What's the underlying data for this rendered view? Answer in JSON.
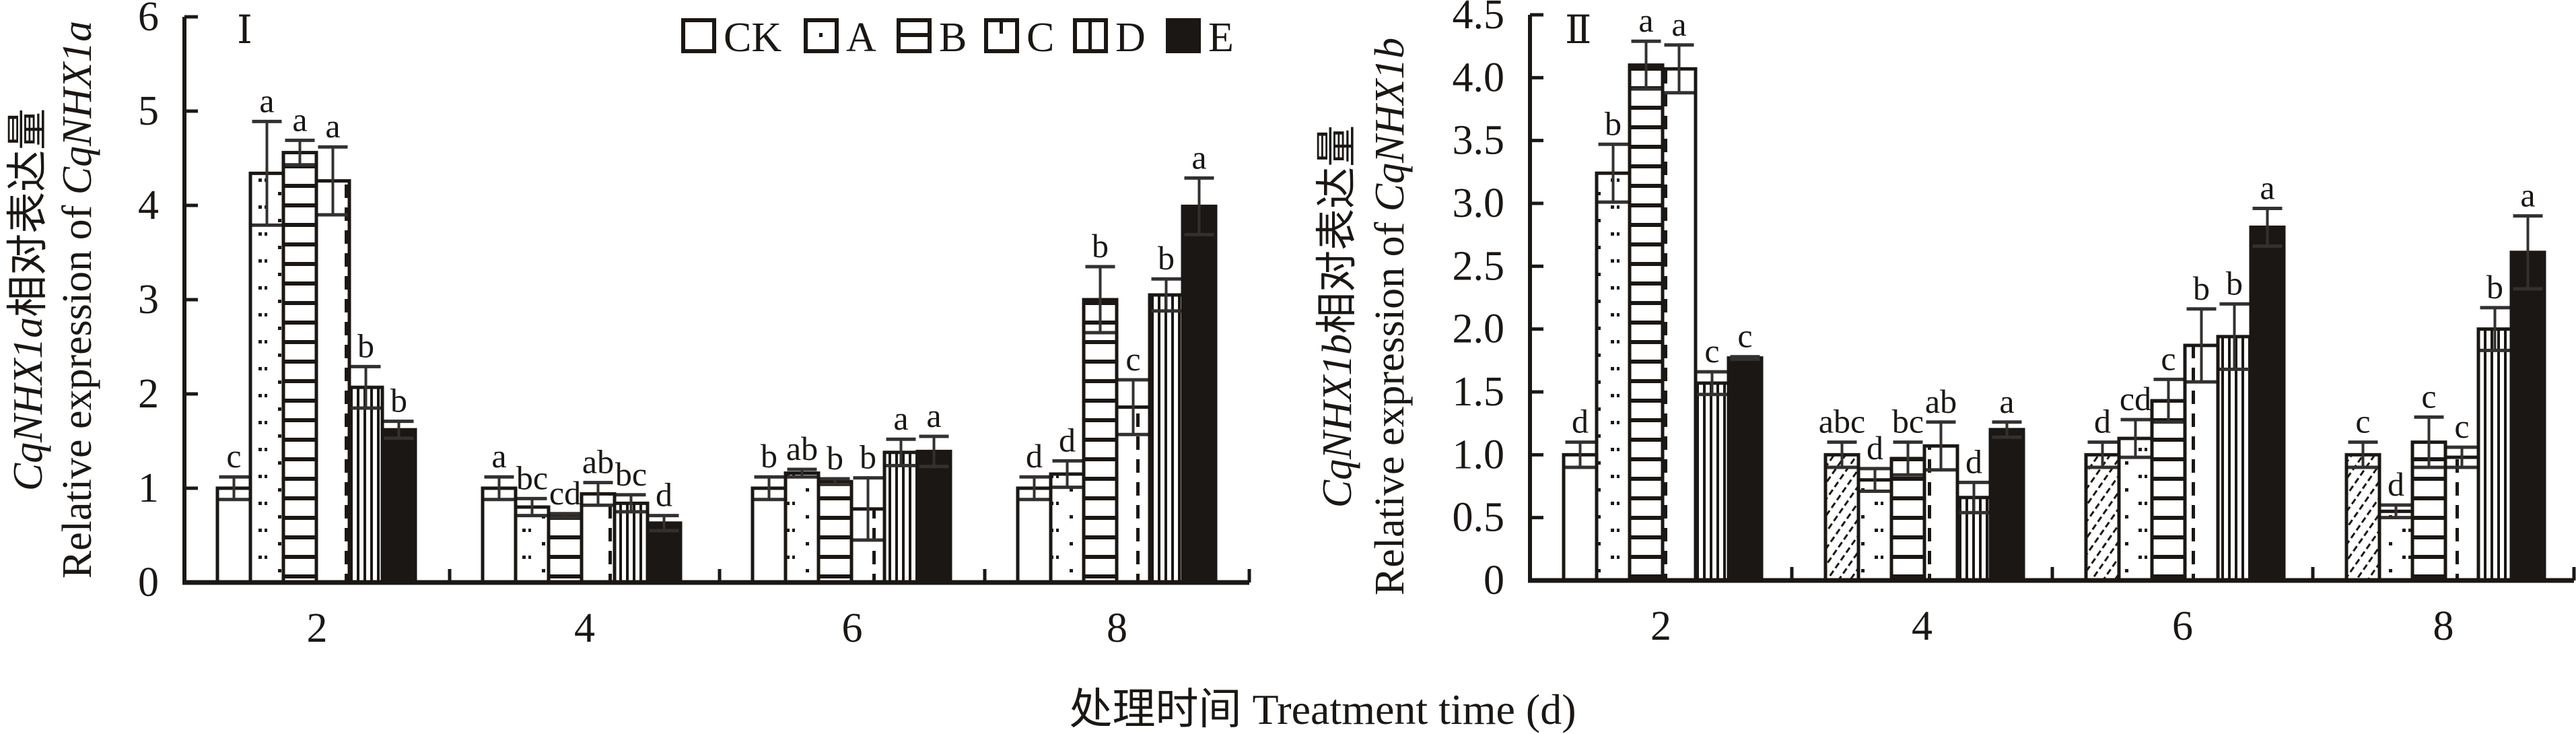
{
  "x_axis_title": "处理时间 Treatment time (d)",
  "legend": [
    {
      "key": "CK",
      "pattern": "none"
    },
    {
      "key": "A",
      "pattern": "dots"
    },
    {
      "key": "B",
      "pattern": "hlines"
    },
    {
      "key": "C",
      "pattern": "dash"
    },
    {
      "key": "D",
      "pattern": "vlines"
    },
    {
      "key": "E",
      "pattern": "solid"
    }
  ],
  "colors": {
    "ink": "#1a1714",
    "error_bar": "#333130",
    "background": "#ffffff"
  },
  "chart_data": [
    {
      "type": "bar",
      "panel": "Ⅰ",
      "ylabel_line1": "CqNHX1a相对表达量",
      "ylabel_line2": "Relative expression of CqNHX1a",
      "xlabel": "处理时间 Treatment time (d)",
      "categories": [
        "2",
        "4",
        "6",
        "8"
      ],
      "ylim": [
        0,
        6
      ],
      "yticks": [
        "0",
        "1",
        "2",
        "3",
        "4",
        "5",
        "6"
      ],
      "ytick_values": [
        0,
        1,
        2,
        3,
        4,
        5,
        6
      ],
      "grid": false,
      "legend_position": "top-right",
      "series": [
        {
          "name": "CK",
          "values": [
            1.0,
            1.0,
            1.0,
            1.0
          ],
          "errors": [
            0.12,
            0.12,
            0.12,
            0.12
          ],
          "letters": [
            "c",
            "a",
            "b",
            "d"
          ]
        },
        {
          "name": "A",
          "values": [
            4.34,
            0.8,
            1.16,
            1.15
          ],
          "errors": [
            0.55,
            0.09,
            0.04,
            0.14
          ],
          "letters": [
            "a",
            "bc",
            "ab",
            "d"
          ]
        },
        {
          "name": "B",
          "values": [
            4.56,
            0.71,
            1.07,
            3.0
          ],
          "errors": [
            0.13,
            0.02,
            0.03,
            0.35
          ],
          "letters": [
            "a",
            "cd",
            "b",
            "b"
          ]
        },
        {
          "name": "C",
          "values": [
            4.26,
            0.94,
            0.78,
            1.86
          ],
          "errors": [
            0.36,
            0.12,
            0.33,
            0.29
          ],
          "letters": [
            "a",
            "ab",
            "b",
            "c"
          ]
        },
        {
          "name": "D",
          "values": [
            2.07,
            0.84,
            1.38,
            3.05
          ],
          "errors": [
            0.22,
            0.09,
            0.14,
            0.17
          ],
          "letters": [
            "b",
            "bc",
            "a",
            "b"
          ]
        },
        {
          "name": "E",
          "values": [
            1.62,
            0.63,
            1.39,
            3.99
          ],
          "errors": [
            0.09,
            0.08,
            0.16,
            0.3
          ],
          "letters": [
            "b",
            "d",
            "a",
            "a"
          ]
        }
      ]
    },
    {
      "type": "bar",
      "panel": "Ⅱ",
      "ylabel_line1": "CqNHX1b相对表达量",
      "ylabel_line2": "Relative expression of CqNHX1b",
      "xlabel": "处理时间 Treatment time (d)",
      "categories": [
        "2",
        "4",
        "6",
        "8"
      ],
      "ylim": [
        0,
        4.5
      ],
      "yticks": [
        "0",
        "0.5",
        "1.0",
        "1.5",
        "2.0",
        "2.5",
        "3.0",
        "3.5",
        "4.0",
        "4.5"
      ],
      "ytick_values": [
        0,
        0.5,
        1.0,
        1.5,
        2.0,
        2.5,
        3.0,
        3.5,
        4.0,
        4.5
      ],
      "grid": false,
      "series": [
        {
          "name": "CK",
          "values": [
            1.0,
            1.0,
            1.0,
            1.0
          ],
          "errors": [
            0.1,
            0.1,
            0.1,
            0.1
          ],
          "letters": [
            "d",
            "abc",
            "d",
            "c"
          ]
        },
        {
          "name": "A",
          "values": [
            3.24,
            0.8,
            1.13,
            0.55
          ],
          "errors": [
            0.23,
            0.09,
            0.15,
            0.05
          ],
          "letters": [
            "b",
            "d",
            "cd",
            "d"
          ]
        },
        {
          "name": "B",
          "values": [
            4.1,
            0.97,
            1.43,
            1.1
          ],
          "errors": [
            0.19,
            0.13,
            0.17,
            0.2
          ],
          "letters": [
            "a",
            "bc",
            "c",
            "c"
          ]
        },
        {
          "name": "C",
          "values": [
            4.07,
            1.07,
            1.87,
            0.98
          ],
          "errors": [
            0.19,
            0.19,
            0.29,
            0.08
          ],
          "letters": [
            "a",
            "ab",
            "b",
            "c"
          ]
        },
        {
          "name": "D",
          "values": [
            1.57,
            0.66,
            1.94,
            2.0
          ],
          "errors": [
            0.09,
            0.12,
            0.26,
            0.17
          ],
          "letters": [
            "c",
            "d",
            "b",
            "b"
          ]
        },
        {
          "name": "E",
          "values": [
            1.77,
            1.2,
            2.81,
            2.61
          ],
          "errors": [
            0.01,
            0.06,
            0.15,
            0.29
          ],
          "letters": [
            "c",
            "a",
            "a",
            "a"
          ]
        }
      ]
    }
  ]
}
